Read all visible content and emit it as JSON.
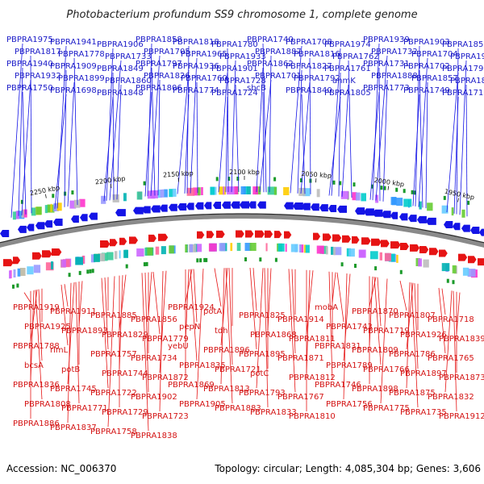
{
  "title": "Photobacterium profundum SS9 chromosome 1, complete genome",
  "footer": {
    "accession": "Accession: NC_006370",
    "summary": "Topology: circular; Length: 4,085,304 bp; Genes: 3,606"
  },
  "scale_ticks": [
    "2250 kbp",
    "2200 kbp",
    "2150 kbp",
    "2100 kbp",
    "2050 kbp",
    "2000 kbp",
    "1950 kbp"
  ],
  "colors": {
    "forward": "#1414e6",
    "reverse": "#e61414",
    "ring": "#8a8a8a"
  },
  "forward_labels": [
    {
      "text": "PBPRA1975"
    },
    {
      "text": "PBPRA1941"
    },
    {
      "text": "PBPRA1906"
    },
    {
      "text": "PBPRA1858"
    },
    {
      "text": "PBPRA1818"
    },
    {
      "text": "PBPRA1780"
    },
    {
      "text": "PBPRA1740"
    },
    {
      "text": "PBPRA1708"
    },
    {
      "text": "PBPRA1974"
    },
    {
      "text": "PBPRA1939"
    },
    {
      "text": "PBPRA1903"
    },
    {
      "text": "PBPRA1851"
    },
    {
      "text": "PBPRA1817"
    },
    {
      "text": "PBPRA1778"
    },
    {
      "text": "PBPRA1733"
    },
    {
      "text": "PBPRA1705"
    },
    {
      "text": "PBPRA1965"
    },
    {
      "text": "PBPRA1933"
    },
    {
      "text": "PBPRA1887"
    },
    {
      "text": "PBPRA1816"
    },
    {
      "text": "PBPRA1762"
    },
    {
      "text": "PBPRA1732"
    },
    {
      "text": "PBPRA1704"
    },
    {
      "text": "PBPRA1972"
    },
    {
      "text": "PBPRA1940"
    },
    {
      "text": "PBPRA1909"
    },
    {
      "text": "PBPRA1849"
    },
    {
      "text": "PBPRA1797"
    },
    {
      "text": "PBPRA1936"
    },
    {
      "text": "PBPRA1901"
    },
    {
      "text": "PBPRA1862"
    },
    {
      "text": "PBPRA1827"
    },
    {
      "text": "PBPRA1761"
    },
    {
      "text": "PBPRA1731"
    },
    {
      "text": "PBPRA1702"
    },
    {
      "text": "PBPRA1796"
    },
    {
      "text": "PBPRA1932"
    },
    {
      "text": "PBPRA1899"
    },
    {
      "text": "PBPRA1860"
    },
    {
      "text": "PBPRA1826"
    },
    {
      "text": "PBPRA1760"
    },
    {
      "text": "PBPRA1728"
    },
    {
      "text": "PBPRA1701"
    },
    {
      "text": "PBPRA1792"
    },
    {
      "text": "anmK"
    },
    {
      "text": "PBPRA1888"
    },
    {
      "text": "PBPRA1857"
    },
    {
      "text": "PBPRA1821"
    },
    {
      "text": "PBPRA1750"
    },
    {
      "text": "PBPRA1698"
    },
    {
      "text": "PBPRA1848"
    },
    {
      "text": "PBPRA1806"
    },
    {
      "text": "PBPRA1774"
    },
    {
      "text": "PBPRA1724"
    },
    {
      "text": "sbcB"
    },
    {
      "text": "PBPRA1840"
    },
    {
      "text": "PBPRA1805"
    },
    {
      "text": "PBPRA1773"
    },
    {
      "text": "PBPRA1749"
    },
    {
      "text": "PBPRA1717"
    }
  ],
  "reverse_labels": [
    {
      "text": "PBPRA1919"
    },
    {
      "text": "PBPRA1911"
    },
    {
      "text": "PBPRA1885"
    },
    {
      "text": "PBPRA1856"
    },
    {
      "text": "PBPRA1924"
    },
    {
      "text": "potA"
    },
    {
      "text": "PBPRA1825"
    },
    {
      "text": "PBPRA1914"
    },
    {
      "text": "mobA"
    },
    {
      "text": "PBPRA1870"
    },
    {
      "text": "PBPRA1807"
    },
    {
      "text": "PBPRA1718"
    },
    {
      "text": "PBPRA1925"
    },
    {
      "text": "PBPRA1893"
    },
    {
      "text": "PBPRA1829"
    },
    {
      "text": "PBPRA1779"
    },
    {
      "text": "pepN"
    },
    {
      "text": "tdh"
    },
    {
      "text": "PBPRA1868"
    },
    {
      "text": "PBPRA1811"
    },
    {
      "text": "PBPRA1743"
    },
    {
      "text": "PBPRA1719"
    },
    {
      "text": "PBPRA1926"
    },
    {
      "text": "PBPRA1839"
    },
    {
      "text": "PBPRA1788"
    },
    {
      "text": "rlmL"
    },
    {
      "text": "PBPRA1757"
    },
    {
      "text": "PBPRA1734"
    },
    {
      "text": "yebU"
    },
    {
      "text": "PBPRA1896"
    },
    {
      "text": "PBPRA1895"
    },
    {
      "text": "PBPRA1871"
    },
    {
      "text": "PBPRA1831"
    },
    {
      "text": "PBPRA1809"
    },
    {
      "text": "PBPRA1786"
    },
    {
      "text": "PBPRA1765"
    },
    {
      "text": "bcsA"
    },
    {
      "text": "potB"
    },
    {
      "text": "PBPRA1744"
    },
    {
      "text": "PBPRA1872"
    },
    {
      "text": "PBPRA1835"
    },
    {
      "text": "PBPRA1721"
    },
    {
      "text": "potC"
    },
    {
      "text": "PBPRA1812"
    },
    {
      "text": "PBPRA1789"
    },
    {
      "text": "PBPRA1766"
    },
    {
      "text": "PBPRA1897"
    },
    {
      "text": "PBPRA1873"
    },
    {
      "text": "PBPRA1836"
    },
    {
      "text": "PBPRA1745"
    },
    {
      "text": "PBPRA1722"
    },
    {
      "text": "PBPRA1902"
    },
    {
      "text": "PBPRA1869"
    },
    {
      "text": "PBPRA1813"
    },
    {
      "text": "PBPRA1793"
    },
    {
      "text": "PBPRA1767"
    },
    {
      "text": "PBPRA1746"
    },
    {
      "text": "PBPRA1898"
    },
    {
      "text": "PBPRA1875"
    },
    {
      "text": "PBPRA1832"
    },
    {
      "text": "PBPRA1808"
    },
    {
      "text": "PBPRA1771"
    },
    {
      "text": "PBPRA1729"
    },
    {
      "text": "PBPRA1723"
    },
    {
      "text": "PBPRA1905"
    },
    {
      "text": "PBPRA1883"
    },
    {
      "text": "PBPRA1833"
    },
    {
      "text": "PBPRA1810"
    },
    {
      "text": "PBPRA1756"
    },
    {
      "text": "PBPRA1775"
    },
    {
      "text": "PBPRA1735"
    },
    {
      "text": "PBPRA1912"
    },
    {
      "text": "PBPRA1886"
    },
    {
      "text": "PBPRA1837"
    },
    {
      "text": "PBPRA1758"
    },
    {
      "text": "PBPRA1838"
    }
  ]
}
